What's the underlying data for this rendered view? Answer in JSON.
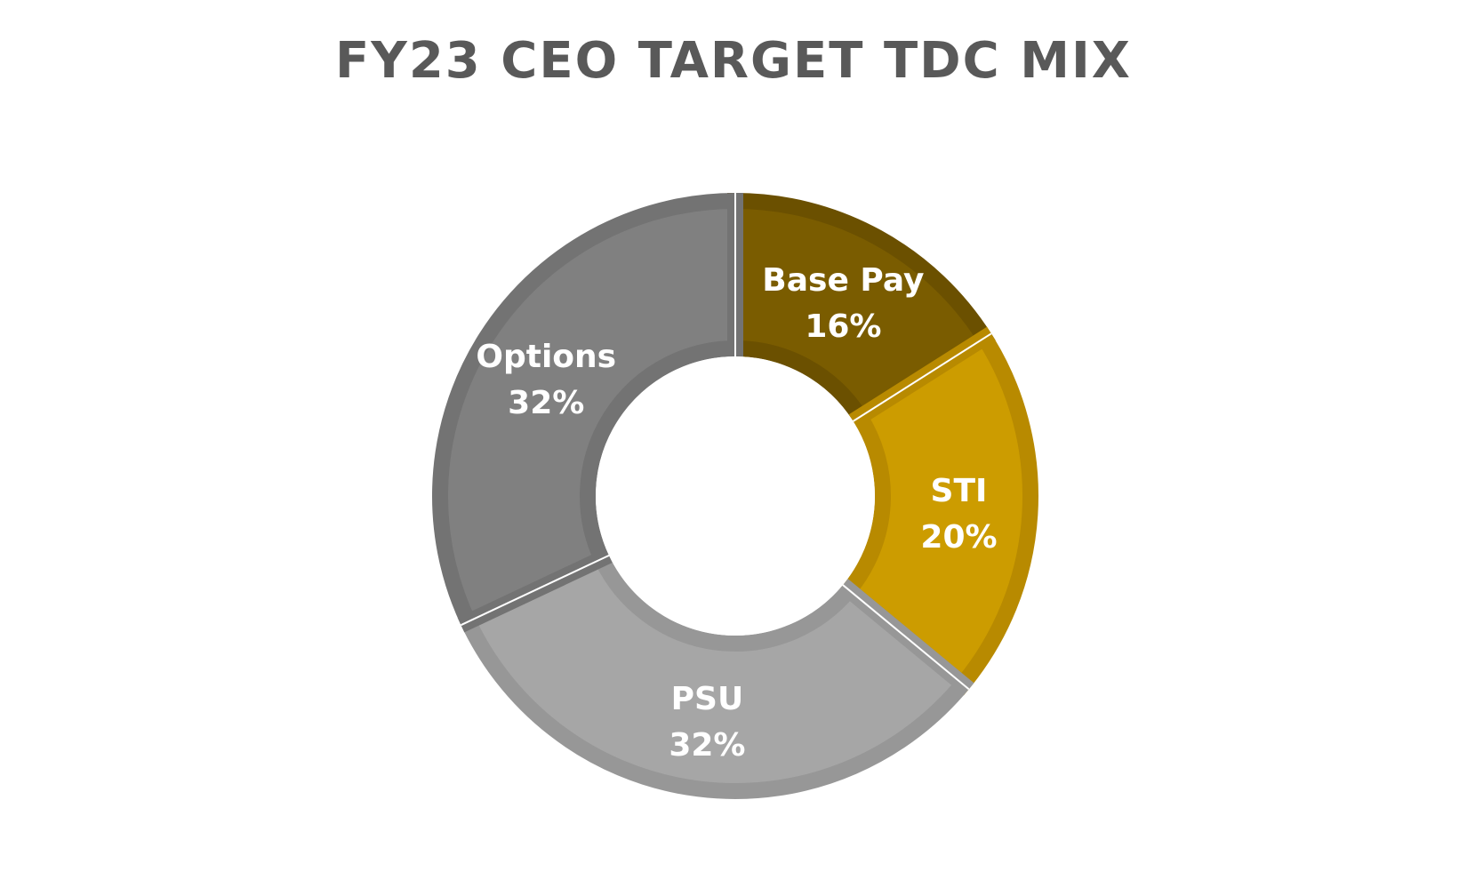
{
  "chart_data": {
    "type": "pie",
    "variant": "donut",
    "title": "FY23 CEO TARGET TDC MIX",
    "start_angle_deg": 0,
    "direction": "clockwise",
    "legend": "none",
    "slices": [
      {
        "label": "Base Pay",
        "value": 16,
        "value_label": "16%",
        "color": "#7a5c00",
        "border": "#6b5000"
      },
      {
        "label": "STI",
        "value": 20,
        "value_label": "20%",
        "color": "#cc9c00",
        "border": "#b88a00"
      },
      {
        "label": "PSU",
        "value": 32,
        "value_label": "32%",
        "color": "#a6a6a6",
        "border": "#979797"
      },
      {
        "label": "Options",
        "value": 32,
        "value_label": "32%",
        "color": "#808080",
        "border": "#737373"
      }
    ]
  }
}
